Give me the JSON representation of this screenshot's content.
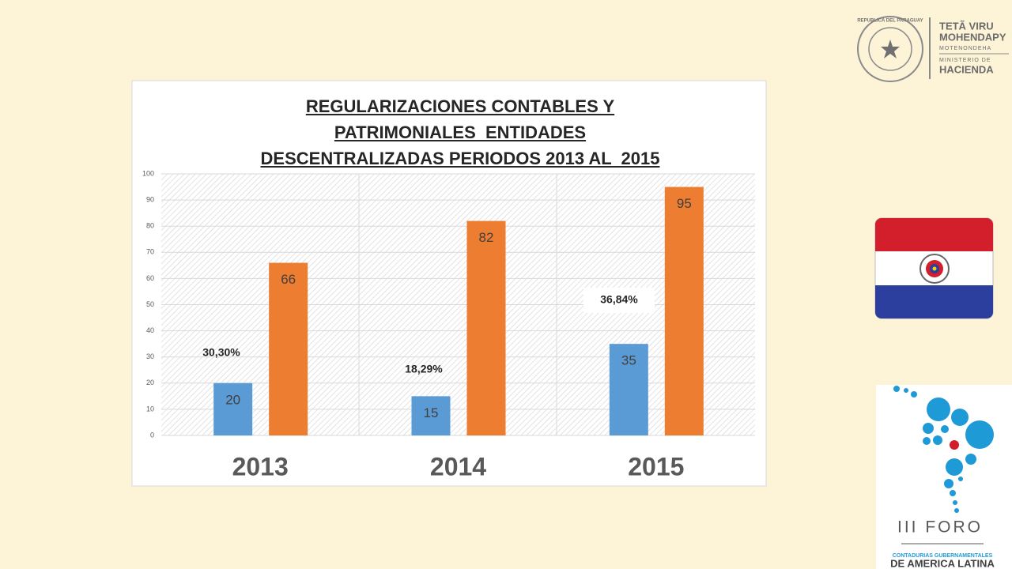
{
  "chart_data": {
    "type": "bar",
    "title": [
      "REGULARIZACIONES CONTABLES Y",
      "PATRIMONIALES  ENTIDADES",
      "DESCENTRALIZADAS PERIODOS 2013 AL  2015"
    ],
    "categories": [
      "2013",
      "2014",
      "2015"
    ],
    "series": [
      {
        "color": "#5b9bd5",
        "values": [
          20,
          15,
          35
        ]
      },
      {
        "color": "#ed7d31",
        "values": [
          66,
          82,
          95
        ]
      }
    ],
    "annotations": [
      "30,30%",
      "18,29%",
      "36,84%"
    ],
    "ylim": [
      0,
      100
    ],
    "yticks": [
      0,
      10,
      20,
      30,
      40,
      50,
      60,
      70,
      80,
      90,
      100
    ],
    "grid": true
  },
  "logos": {
    "seal": "REPUBLICA DEL PARAGUAY",
    "ministry": [
      "TETÃ VIRU",
      "MOHENDAPY",
      "MOTENONDEHA",
      "MINISTERIO DE",
      "HACIENDA"
    ],
    "forum": [
      "III FORO",
      "CONTADURIAS GUBERNAMENTALES",
      "DE AMERICA LATINA"
    ]
  }
}
